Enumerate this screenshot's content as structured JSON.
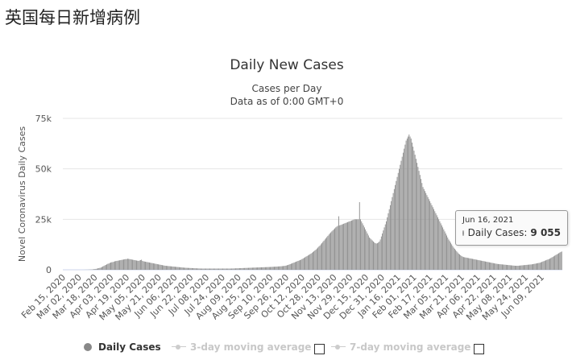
{
  "page": {
    "heading": "英国每日新增病例"
  },
  "chart_data": {
    "type": "bar",
    "title": "Daily New Cases",
    "subtitle": "Cases per Day",
    "subtitle2": "Data as of 0:00 GMT+0",
    "ylabel": "Novel Coronavirus Daily Cases",
    "ylim": [
      0,
      75000
    ],
    "yticks": [
      0,
      25000,
      50000,
      75000
    ],
    "ytick_labels": [
      "0",
      "25k",
      "50k",
      "75k"
    ],
    "xtick_labels": [
      "Feb 15, 2020",
      "Mar 02, 2020",
      "Mar 18, 2020",
      "Apr 03, 2020",
      "Apr 19, 2020",
      "May 05, 2020",
      "May 21, 2020",
      "Jun 06, 2020",
      "Jun 22, 2020",
      "Jul 08, 2020",
      "Jul 24, 2020",
      "Aug 09, 2020",
      "Aug 25, 2020",
      "Sep 10, 2020",
      "Sep 26, 2020",
      "Oct 12, 2020",
      "Oct 28, 2020",
      "Nov 13, 2020",
      "Nov 29, 2020",
      "Dec 15, 2020",
      "Dec 31, 2020",
      "Jan 16, 2021",
      "Feb 01, 2021",
      "Feb 17, 2021",
      "Mar 05, 2021",
      "Mar 21, 2021",
      "Apr 06, 2021",
      "Apr 22, 2021",
      "May 08, 2021",
      "May 24, 2021",
      "Jun 09, 2021"
    ],
    "grid": true,
    "bar_color": "#8c8c8c",
    "series": [
      {
        "name": "Daily Cases",
        "values": [
          0,
          0,
          0,
          0,
          0,
          0,
          0,
          0,
          0,
          0,
          0,
          0,
          0,
          0,
          0,
          0,
          0,
          0,
          0,
          0,
          5,
          13,
          20,
          30,
          47,
          62,
          76,
          99,
          134,
          161,
          218,
          291,
          378,
          435,
          566,
          695,
          816,
          950,
          1100,
          1350,
          1650,
          1900,
          2200,
          2400,
          2700,
          2950,
          3100,
          3400,
          3600,
          3750,
          3800,
          4000,
          4200,
          4300,
          4400,
          4500,
          4600,
          4700,
          4800,
          4900,
          5000,
          5100,
          5200,
          5300,
          5300,
          5500,
          5400,
          5300,
          5200,
          5100,
          5000,
          4900,
          4800,
          4700,
          4600,
          4500,
          4400,
          4600,
          4800,
          5000,
          4400,
          4200,
          4100,
          4000,
          3900,
          3800,
          3700,
          3600,
          3500,
          3400,
          3300,
          3200,
          3100,
          3000,
          2900,
          2800,
          2700,
          2600,
          2500,
          2400,
          2300,
          2200,
          2100,
          2000,
          1950,
          1900,
          1850,
          1800,
          1750,
          1700,
          1650,
          1600,
          1550,
          1500,
          1450,
          1400,
          1350,
          1300,
          1250,
          1200,
          1150,
          1100,
          1050,
          1000,
          975,
          950,
          925,
          900,
          875,
          850,
          825,
          800,
          775,
          750,
          725,
          700,
          675,
          650,
          625,
          600,
          600,
          600,
          600,
          600,
          600,
          600,
          600,
          600,
          600,
          600,
          600,
          600,
          600,
          600,
          600,
          600,
          600,
          600,
          600,
          600,
          600,
          600,
          600,
          600,
          600,
          600,
          600,
          600,
          600,
          600,
          620,
          640,
          660,
          680,
          700,
          720,
          740,
          760,
          780,
          800,
          820,
          840,
          860,
          880,
          900,
          920,
          940,
          960,
          980,
          1000,
          1020,
          1040,
          1060,
          1080,
          1100,
          1120,
          1140,
          1160,
          1180,
          1200,
          1220,
          1240,
          1260,
          1280,
          1300,
          1320,
          1340,
          1360,
          1380,
          1400,
          1430,
          1460,
          1490,
          1520,
          1550,
          1580,
          1610,
          1640,
          1670,
          1700,
          1750,
          1800,
          1850,
          1900,
          2000,
          2100,
          2250,
          2400,
          2600,
          2800,
          3000,
          3200,
          3400,
          3600,
          3800,
          4000,
          4200,
          4400,
          4600,
          4800,
          5000,
          5300,
          5600,
          5900,
          6200,
          6500,
          6800,
          7100,
          7400,
          7700,
          8000,
          8400,
          8800,
          9200,
          9600,
          10000,
          10500,
          11000,
          11500,
          12000,
          12600,
          13200,
          13800,
          14400,
          15000,
          15600,
          16200,
          16800,
          17400,
          18000,
          18500,
          19000,
          19500,
          20000,
          20500,
          21000,
          21400,
          21800,
          26500,
          22000,
          22200,
          22400,
          22600,
          22800,
          23000,
          23200,
          23400,
          23600,
          23800,
          24000,
          24200,
          24400,
          24600,
          24800,
          25000,
          25000,
          25000,
          25000,
          25000,
          33500,
          25000,
          24000,
          23000,
          22000,
          21000,
          20000,
          19000,
          18000,
          17000,
          16000,
          15500,
          15000,
          14500,
          14000,
          13500,
          13200,
          13000,
          13200,
          13500,
          14000,
          15000,
          16500,
          18000,
          19500,
          21000,
          22500,
          24000,
          26000,
          28000,
          30000,
          32000,
          34000,
          36000,
          38000,
          40000,
          42000,
          44000,
          46000,
          48000,
          50000,
          52000,
          54000,
          56000,
          58000,
          60000,
          62000,
          64000,
          65000,
          66000,
          67000,
          66000,
          65000,
          63000,
          61000,
          59000,
          57000,
          55000,
          53000,
          51000,
          49000,
          47000,
          45000,
          43000,
          41000,
          40000,
          39000,
          38000,
          37000,
          36000,
          35000,
          34000,
          33000,
          32000,
          31000,
          30000,
          29000,
          28000,
          27000,
          26000,
          25000,
          24000,
          23000,
          22000,
          21000,
          20000,
          19000,
          18000,
          17000,
          16000,
          15000,
          14200,
          13400,
          12600,
          11800,
          11000,
          10400,
          9800,
          9200,
          8600,
          8000,
          7600,
          7200,
          6800,
          6500,
          6300,
          6200,
          6100,
          6000,
          5900,
          5800,
          5700,
          5600,
          5500,
          5400,
          5300,
          5200,
          5100,
          5000,
          4900,
          4800,
          4700,
          4600,
          4500,
          4400,
          4300,
          4200,
          4100,
          4000,
          3900,
          3800,
          3700,
          3600,
          3500,
          3400,
          3300,
          3200,
          3100,
          3000,
          2900,
          2850,
          2800,
          2750,
          2700,
          2650,
          2600,
          2550,
          2500,
          2450,
          2400,
          2350,
          2300,
          2250,
          2200,
          2150,
          2100,
          2050,
          2000,
          2000,
          2000,
          2000,
          2050,
          2100,
          2150,
          2200,
          2250,
          2300,
          2350,
          2400,
          2450,
          2500,
          2550,
          2600,
          2650,
          2700,
          2800,
          2900,
          3000,
          3100,
          3200,
          3300,
          3400,
          3500,
          3700,
          3900,
          4100,
          4300,
          4500,
          4700,
          4900,
          5100,
          5300,
          5500,
          5800,
          6100,
          6400,
          6700,
          7000,
          7300,
          7600,
          7900,
          8200,
          8500,
          8800,
          9055
        ]
      }
    ],
    "legend": {
      "position": "bottom",
      "items": [
        "Daily Cases",
        "3-day moving average",
        "7-day moving average"
      ]
    },
    "tooltip": {
      "date": "Jun 16, 2021",
      "label": "Daily Cases:",
      "value": "9 055"
    }
  }
}
